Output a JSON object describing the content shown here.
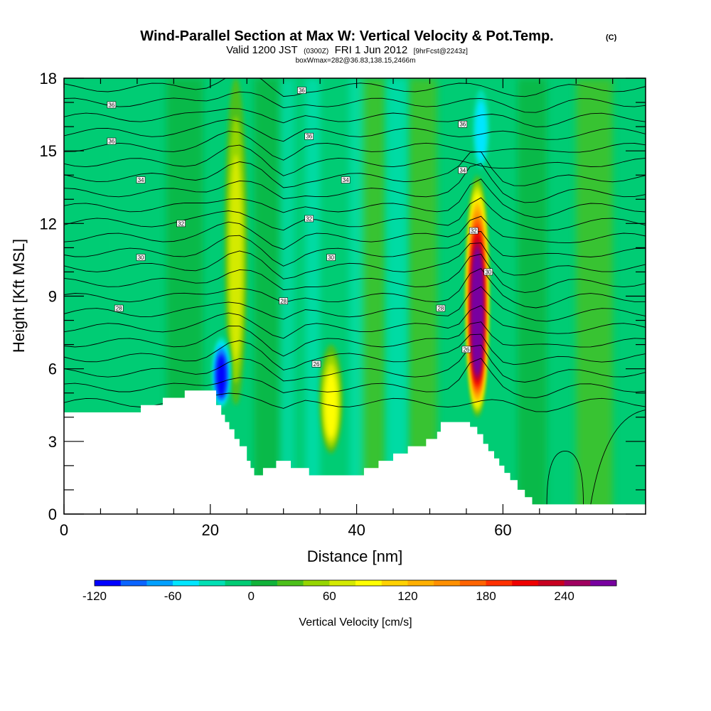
{
  "title": {
    "main": "Wind-Parallel Section at Max W: Vertical Velocity & Pot.Temp.",
    "copyright": "(C)",
    "valid_prefix": "Valid 1200 JST",
    "valid_utc": "(0300Z)",
    "valid_date": "FRI 1 Jun 2012",
    "forecast": "[9hrFcst@2243z]",
    "box": "boxWmax=282@36.83,138.15,2466m"
  },
  "chart_data": {
    "type": "heatmap",
    "xlabel": "Distance [nm]",
    "ylabel": "Height [Kft MSL]",
    "xlim": [
      0,
      79.5
    ],
    "ylim": [
      0,
      18
    ],
    "xticks": [
      0,
      20,
      40,
      60
    ],
    "yticks": [
      0,
      3,
      6,
      9,
      12,
      15,
      18
    ],
    "colorbar": {
      "label": "Vertical Velocity [cm/s]",
      "ticks": [
        -120,
        -60,
        0,
        60,
        120,
        180,
        240
      ],
      "min": -120,
      "max": 280,
      "step": 20,
      "colors": [
        "#0000ff",
        "#0a64ff",
        "#00a0ff",
        "#00e6ff",
        "#00e0b4",
        "#00cc74",
        "#10b33a",
        "#4cc01a",
        "#96d600",
        "#d4ea00",
        "#ffff00",
        "#ffd200",
        "#ffb000",
        "#ff9000",
        "#ff6400",
        "#ff3000",
        "#f00000",
        "#c80020",
        "#a00060",
        "#7800a0"
      ]
    },
    "features": [
      {
        "name": "updraft-west",
        "x": 23.5,
        "y_bottom": 4.5,
        "y_top": 18,
        "w": 60
      },
      {
        "name": "updraft-center",
        "x": 36.5,
        "y_bottom": 2.5,
        "y_top": 7.0,
        "w": 80
      },
      {
        "name": "updraft-main",
        "x": 56.5,
        "y_bottom": 4.0,
        "y_top": 14.0,
        "w": 280
      },
      {
        "name": "downdraft-west",
        "x": 21.5,
        "y_bottom": 4.3,
        "y_top": 7.5,
        "w": -120
      },
      {
        "name": "downdraft-east",
        "x": 57.0,
        "y_bottom": 14.0,
        "y_top": 18,
        "w": -60
      }
    ],
    "theta_contour_labels": [
      {
        "text": "36",
        "x": 6.5,
        "y": 16.9
      },
      {
        "text": "36",
        "x": 32.5,
        "y": 17.5
      },
      {
        "text": "36",
        "x": 6.5,
        "y": 15.4
      },
      {
        "text": "36",
        "x": 33.5,
        "y": 15.6
      },
      {
        "text": "36",
        "x": 54.5,
        "y": 16.1
      },
      {
        "text": "34",
        "x": 10.5,
        "y": 13.8
      },
      {
        "text": "34",
        "x": 38.5,
        "y": 13.8
      },
      {
        "text": "34",
        "x": 54.5,
        "y": 14.2
      },
      {
        "text": "32",
        "x": 16.0,
        "y": 12.0
      },
      {
        "text": "32",
        "x": 33.5,
        "y": 12.2
      },
      {
        "text": "32",
        "x": 56.0,
        "y": 11.7
      },
      {
        "text": "30",
        "x": 10.5,
        "y": 10.6
      },
      {
        "text": "30",
        "x": 36.5,
        "y": 10.6
      },
      {
        "text": "30",
        "x": 58.0,
        "y": 10.0
      },
      {
        "text": "28",
        "x": 7.5,
        "y": 8.5
      },
      {
        "text": "28",
        "x": 30.0,
        "y": 8.8
      },
      {
        "text": "28",
        "x": 51.5,
        "y": 8.5
      },
      {
        "text": "26",
        "x": 34.5,
        "y": 6.2
      },
      {
        "text": "26",
        "x": 55.0,
        "y": 6.8
      }
    ]
  }
}
